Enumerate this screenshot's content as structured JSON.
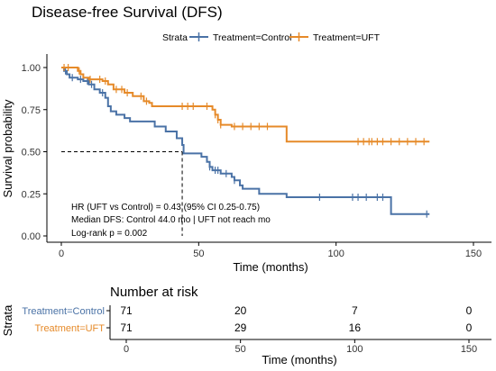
{
  "chart_data": [
    {
      "type": "line",
      "title": "Disease-free Survival (DFS)",
      "xlabel": "Time (months)",
      "ylabel": "Survival probability",
      "xlim": [
        0,
        150
      ],
      "ylim": [
        0,
        1
      ],
      "x_ticks": [
        "0",
        "50",
        "100",
        "150"
      ],
      "y_ticks": [
        "0.00",
        "0.25",
        "0.50",
        "0.75",
        "1.00"
      ],
      "grid": false,
      "legend": {
        "title": "Strata",
        "placement": "top",
        "entries": [
          "Treatment=Control",
          "Treatment=UFT"
        ]
      },
      "series": [
        {
          "name": "Treatment=Control",
          "color": "#4a72a6",
          "steps": [
            [
              0,
              1.0
            ],
            [
              1,
              0.98
            ],
            [
              2,
              0.96
            ],
            [
              3,
              0.94
            ],
            [
              6,
              0.93
            ],
            [
              8,
              0.92
            ],
            [
              10,
              0.9
            ],
            [
              12,
              0.87
            ],
            [
              14,
              0.85
            ],
            [
              16,
              0.82
            ],
            [
              17,
              0.77
            ],
            [
              18,
              0.74
            ],
            [
              20,
              0.72
            ],
            [
              23,
              0.7
            ],
            [
              25,
              0.68
            ],
            [
              34,
              0.65
            ],
            [
              38,
              0.62
            ],
            [
              42,
              0.58
            ],
            [
              44,
              0.54
            ],
            [
              44.5,
              0.49
            ],
            [
              51,
              0.47
            ],
            [
              53,
              0.44
            ],
            [
              54,
              0.41
            ],
            [
              55,
              0.39
            ],
            [
              58,
              0.37
            ],
            [
              62,
              0.35
            ],
            [
              63,
              0.33
            ],
            [
              65,
              0.3
            ],
            [
              66,
              0.28
            ],
            [
              72,
              0.25
            ],
            [
              82,
              0.23
            ],
            [
              120,
              0.13
            ],
            [
              134,
              0.13
            ]
          ],
          "censor_x": [
            1.5,
            4,
            7,
            9.5,
            11,
            15,
            54,
            56,
            57,
            60,
            63,
            94,
            106,
            108,
            111,
            115,
            117,
            133
          ]
        },
        {
          "name": "Treatment=UFT",
          "color": "#e68a29",
          "steps": [
            [
              0,
              1.0
            ],
            [
              6,
              0.98
            ],
            [
              7,
              0.96
            ],
            [
              8,
              0.94
            ],
            [
              10,
              0.93
            ],
            [
              15,
              0.92
            ],
            [
              17,
              0.9
            ],
            [
              19,
              0.87
            ],
            [
              23,
              0.85
            ],
            [
              26,
              0.83
            ],
            [
              30,
              0.8
            ],
            [
              32,
              0.79
            ],
            [
              33,
              0.77
            ],
            [
              55,
              0.75
            ],
            [
              56,
              0.72
            ],
            [
              57,
              0.69
            ],
            [
              58,
              0.66
            ],
            [
              62,
              0.65
            ],
            [
              82,
              0.56
            ],
            [
              134,
              0.56
            ]
          ],
          "censor_x": [
            1,
            2.5,
            6.5,
            10.5,
            14,
            16,
            20,
            22,
            24,
            29,
            31,
            44,
            46,
            48,
            53,
            56,
            57,
            58,
            63,
            66,
            69,
            72,
            75,
            108,
            110,
            112,
            113,
            115,
            117,
            120,
            123,
            126,
            129,
            132
          ]
        }
      ],
      "median_reference": {
        "x": 44,
        "y": 0.5
      },
      "annotations": [
        "HR (UFT vs Control) = 0.43 (95% CI 0.25-0.75)",
        "Median DFS: Control 44.0 mo | UFT not reach mo",
        "Log-rank p = 0.002"
      ]
    },
    {
      "type": "table",
      "title": "Number at risk",
      "xlabel": "Time (months)",
      "ylabel": "Strata",
      "x_ticks": [
        "0",
        "50",
        "100",
        "150"
      ],
      "time_points": [
        0,
        50,
        100,
        150
      ],
      "rows": [
        {
          "name": "Treatment=Control",
          "color": "#4a72a6",
          "values": [
            "71",
            "20",
            "7",
            "0"
          ]
        },
        {
          "name": "Treatment=UFT",
          "color": "#e68a29",
          "values": [
            "71",
            "29",
            "16",
            "0"
          ]
        }
      ]
    }
  ]
}
